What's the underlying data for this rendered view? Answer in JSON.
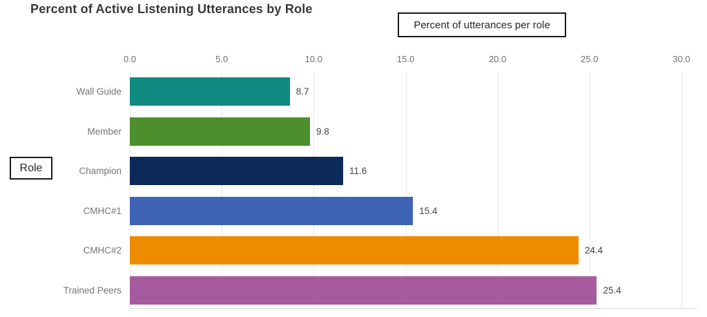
{
  "title": "Percent of Active Listening Utterances by Role",
  "annotations": {
    "x_axis_label_box": "Percent of utterances per role",
    "y_axis_label_box": "Role"
  },
  "chart_data": {
    "type": "bar",
    "orientation": "horizontal",
    "title": "Percent of Active Listening Utterances by Role",
    "xlabel": "Percent of utterances per role",
    "ylabel": "Role",
    "categories": [
      "Wall Guide",
      "Member",
      "Champion",
      "CMHC#1",
      "CMHC#2",
      "Trained Peers"
    ],
    "values": [
      8.7,
      9.8,
      11.6,
      15.4,
      24.4,
      25.4
    ],
    "bar_colors": [
      "#0E8A82",
      "#4C8F2C",
      "#0C2A57",
      "#3F63B5",
      "#EE8B00",
      "#A55B9D"
    ],
    "xlim": [
      0,
      30
    ],
    "xticks": [
      "0.0",
      "5.0",
      "10.0",
      "15.0",
      "20.0",
      "25.0",
      "30.0"
    ],
    "tick_label_color": "#6e6e6e",
    "grid": true,
    "grid_color": "#e8e8e8",
    "value_label_color": "#444444",
    "category_label_color": "#767676",
    "legend_position": "top-right",
    "axis_side": "top"
  }
}
